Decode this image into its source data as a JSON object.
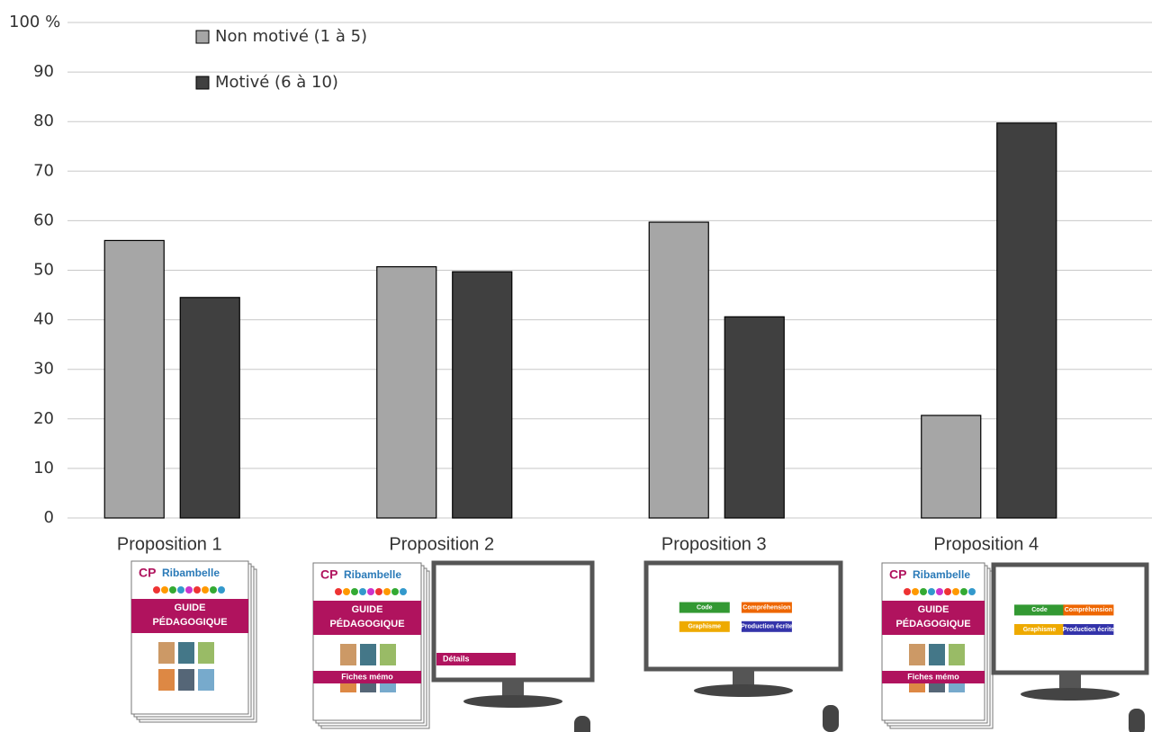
{
  "chart_data": {
    "type": "bar",
    "categories": [
      "Proposition 1",
      "Proposition 2",
      "Proposition 3",
      "Proposition 4"
    ],
    "series": [
      {
        "name": "Non motivé (1 à 5)",
        "color": "#a6a6a6",
        "values": [
          56,
          50.7,
          59.7,
          20.7
        ]
      },
      {
        "name": "Motivé (6 à 10)",
        "color": "#404040",
        "values": [
          44.5,
          49.7,
          40.6,
          79.7
        ]
      }
    ],
    "ylim": [
      0,
      100
    ],
    "yticks": [
      0,
      10,
      20,
      30,
      40,
      50,
      60,
      70,
      80,
      90,
      {
        "value": 100,
        "label": "100 %"
      }
    ],
    "grid": true
  },
  "illustrations": {
    "cp": "CP",
    "brand": "Ribambelle",
    "guide": "GUIDE",
    "peda": "PÉDAGOGIQUE",
    "memo": "Fiches mémo",
    "details": "Détails",
    "nodes": [
      "Code",
      "Compréhension",
      "Graphisme",
      "Production écrite"
    ]
  }
}
